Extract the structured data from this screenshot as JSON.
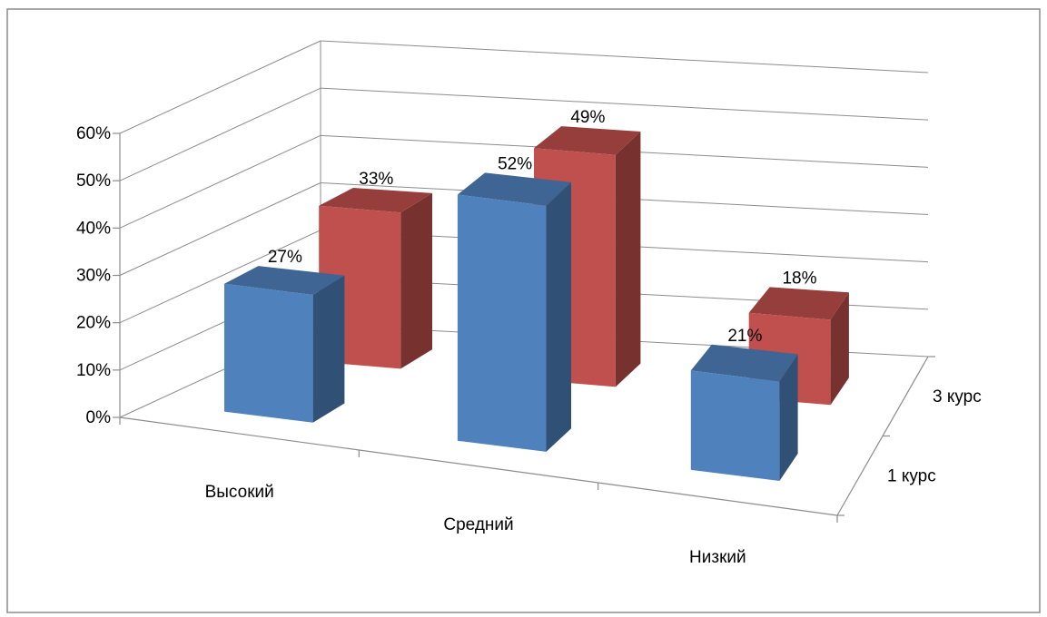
{
  "chart_data": {
    "type": "bar",
    "subtype": "3d-column",
    "title": "",
    "xlabel": "",
    "ylabel": "",
    "categories": [
      "Высокий",
      "Средний",
      "Низкий"
    ],
    "series": [
      {
        "name": "1 курс",
        "values": [
          0.27,
          0.52,
          0.21
        ],
        "labels": [
          "27%",
          "52%",
          "21%"
        ],
        "color": "#4F81BD"
      },
      {
        "name": "3 курс",
        "values": [
          0.33,
          0.49,
          0.18
        ],
        "labels": [
          "33%",
          "49%",
          "18%"
        ],
        "color": "#C0504D"
      }
    ],
    "ylim": [
      0,
      0.6
    ],
    "yticks": [
      0,
      0.1,
      0.2,
      0.3,
      0.4,
      0.5,
      0.6
    ],
    "ytick_labels": [
      "0%",
      "10%",
      "20%",
      "30%",
      "40%",
      "50%",
      "60%"
    ],
    "grid": true,
    "legend": "none"
  }
}
